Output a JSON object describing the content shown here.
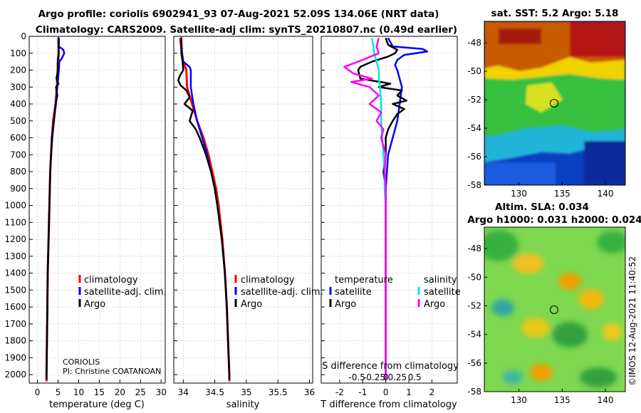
{
  "header": {
    "title_line1": "Argo profile: coriolis 6902941_93 07-Aug-2021 52.09S 134.06E (NRT data)",
    "title_line2": "Climatology: CARS2009. Satellite-adj clim: synTS_20210807.nc (0.49d earlier)"
  },
  "colors": {
    "climatology": "#ff0000",
    "satellite": "#0000ff",
    "argo": "#000000",
    "t_sat": "#0000ff",
    "s_sat": "#00e5e5",
    "s_argo": "#ff00ff",
    "grid": "#c8c8c8"
  },
  "chart_data": [
    {
      "id": "temperature",
      "type": "line",
      "xlabel": "temperature (deg C)",
      "ylabel": "",
      "xlim": [
        -2,
        31
      ],
      "ylim": [
        2050,
        0
      ],
      "xticks": [
        0,
        5,
        10,
        15,
        20,
        25,
        30
      ],
      "xticklabels": [
        "0",
        "5",
        "10",
        "15",
        "20",
        "25",
        "30"
      ],
      "yticks": [
        0,
        100,
        200,
        300,
        400,
        500,
        600,
        700,
        800,
        900,
        1000,
        1100,
        1200,
        1300,
        1400,
        1500,
        1600,
        1700,
        1800,
        1900,
        2000
      ],
      "yticklabels": [
        "0",
        "100",
        "200",
        "300",
        "400",
        "500",
        "600",
        "700",
        "800",
        "900",
        "1000",
        "1100",
        "1200",
        "1300",
        "1400",
        "1500",
        "1600",
        "1700",
        "1800",
        "1900",
        "2000"
      ],
      "legend": [
        "climatology",
        "satellite-adj. clim.",
        "Argo"
      ],
      "annotation": [
        "CORIOLIS",
        "PI: Christine COATANOAN"
      ],
      "series": [
        {
          "name": "climatology",
          "depth": [
            10,
            50,
            100,
            150,
            200,
            300,
            400,
            450,
            500,
            600,
            700,
            800,
            900,
            1000,
            1200,
            1400,
            1600,
            1800,
            2000,
            2040
          ],
          "values": [
            5.1,
            5.1,
            5.2,
            5.0,
            4.9,
            4.7,
            4.4,
            4.1,
            3.8,
            3.5,
            3.3,
            3.1,
            3.0,
            2.9,
            2.7,
            2.5,
            2.4,
            2.3,
            2.2,
            2.2
          ]
        },
        {
          "name": "satellite-adj. clim.",
          "depth": [
            10,
            60,
            80,
            100,
            130,
            150,
            200,
            300,
            400,
            500,
            600,
            700,
            800,
            900,
            1000,
            1200,
            1400,
            1600,
            1800,
            2000,
            2030
          ],
          "values": [
            5.2,
            5.2,
            6.3,
            6.5,
            5.9,
            5.3,
            5.2,
            4.8,
            4.5,
            4.0,
            3.5,
            3.3,
            3.1,
            3.0,
            2.9,
            2.7,
            2.5,
            2.4,
            2.3,
            2.2,
            2.2
          ]
        },
        {
          "name": "Argo",
          "depth": [
            5,
            100,
            150,
            200,
            250,
            280,
            300,
            350,
            400,
            500,
            600,
            700,
            800,
            1000,
            1200,
            1400,
            1600,
            1800,
            2000,
            2030
          ],
          "values": [
            5.1,
            5.1,
            4.9,
            5.0,
            4.6,
            5.1,
            4.5,
            4.8,
            4.4,
            4.0,
            3.6,
            3.3,
            3.1,
            2.9,
            2.7,
            2.5,
            2.4,
            2.3,
            2.2,
            2.2
          ]
        }
      ]
    },
    {
      "id": "salinity",
      "type": "line",
      "xlabel": "salinity",
      "xlim": [
        33.85,
        36.05
      ],
      "ylim": [
        2050,
        0
      ],
      "xticks": [
        34,
        34.5,
        35,
        35.5,
        36
      ],
      "xticklabels": [
        "34",
        "34.5",
        "35",
        "35.5",
        "36"
      ],
      "legend": [
        "climatology",
        "satellite-adj. clim.",
        "Argo"
      ],
      "series": [
        {
          "name": "climatology",
          "depth": [
            10,
            100,
            150,
            200,
            300,
            400,
            500,
            600,
            700,
            800,
            900,
            1000,
            1200,
            1400,
            1600,
            1800,
            2000,
            2040
          ],
          "values": [
            33.95,
            33.98,
            34.0,
            34.05,
            34.06,
            34.14,
            34.22,
            34.32,
            34.4,
            34.46,
            34.52,
            34.56,
            34.62,
            34.66,
            34.69,
            34.71,
            34.73,
            34.73
          ]
        },
        {
          "name": "satellite-adj. clim.",
          "depth": [
            10,
            100,
            150,
            180,
            200,
            300,
            400,
            500,
            600,
            700,
            800,
            900,
            1000,
            1200,
            1400,
            1600,
            1800,
            2000,
            2030
          ],
          "values": [
            33.97,
            33.98,
            34.0,
            34.1,
            34.12,
            34.12,
            34.16,
            34.22,
            34.3,
            34.38,
            34.44,
            34.5,
            34.54,
            34.61,
            34.66,
            34.69,
            34.71,
            34.73,
            34.73
          ]
        },
        {
          "name": "Argo",
          "depth": [
            5,
            100,
            150,
            200,
            230,
            260,
            290,
            320,
            360,
            400,
            440,
            500,
            550,
            600,
            700,
            800,
            900,
            1000,
            1200,
            1400,
            1600,
            1800,
            2000,
            2030
          ],
          "values": [
            33.97,
            33.97,
            33.99,
            34.0,
            33.95,
            33.92,
            33.96,
            34.05,
            34.1,
            34.02,
            34.15,
            34.1,
            34.2,
            34.26,
            34.36,
            34.44,
            34.5,
            34.54,
            34.61,
            34.66,
            34.69,
            34.71,
            34.73,
            34.73
          ]
        }
      ]
    },
    {
      "id": "difference",
      "type": "line",
      "xlabel": "T difference from climatology",
      "xlabel_top": "S difference from climatology",
      "xlim": [
        -2.8,
        3.1
      ],
      "ylim": [
        2050,
        0
      ],
      "xticks": [
        -2,
        -1,
        0,
        1,
        2
      ],
      "xticklabels": [
        "-2",
        "-1",
        "0",
        "1",
        "2"
      ],
      "sticks": [
        -1.25,
        -0.5,
        0,
        0.5,
        1.25
      ],
      "sticklabels": [
        "-0.5",
        "-0.25",
        "0",
        "0.25",
        "0.5"
      ],
      "legend_headers": [
        "temperature",
        "salinity"
      ],
      "legend": [
        "satellite",
        "Argo",
        "satellite",
        "Argo"
      ],
      "series": [
        {
          "name": "T satellite",
          "depth": [
            10,
            60,
            75,
            90,
            110,
            140,
            170,
            200,
            300,
            400,
            500,
            600,
            700,
            800,
            900,
            1000,
            1200,
            1400,
            1600,
            1800,
            2000,
            2030
          ],
          "values": [
            0.1,
            0.3,
            1.6,
            1.8,
            0.8,
            0.5,
            0.4,
            0.5,
            0.7,
            0.6,
            0.5,
            0.3,
            0.1,
            0.05,
            0.0,
            0.0,
            0.0,
            0.0,
            0.0,
            0.0,
            0.0,
            0.0
          ]
        },
        {
          "name": "T Argo",
          "depth": [
            10,
            50,
            80,
            100,
            120,
            150,
            180,
            200,
            250,
            280,
            300,
            320,
            350,
            380,
            400,
            430,
            460,
            500,
            550,
            600,
            700,
            800,
            900,
            1000,
            1200,
            1400,
            1600,
            1800,
            2000,
            2030
          ],
          "values": [
            0.0,
            0.1,
            0.5,
            0.4,
            0.1,
            -0.6,
            -1.1,
            -1.2,
            -1.1,
            0.2,
            -0.3,
            0.7,
            0.5,
            0.9,
            0.3,
            0.8,
            0.5,
            0.3,
            0.1,
            0.0,
            0.0,
            -0.1,
            0.0,
            0.0,
            0.0,
            0.0,
            0.0,
            0.0,
            0.0,
            0.0
          ]
        },
        {
          "name": "S satellite",
          "depth": [
            10,
            100,
            150,
            200,
            250,
            300,
            400,
            500,
            600,
            700,
            800,
            900,
            1000,
            1200,
            1400,
            1600,
            1800,
            2000,
            2030
          ],
          "values": [
            -0.6,
            -0.5,
            -0.4,
            -0.3,
            -0.3,
            -0.25,
            -0.2,
            -0.2,
            -0.15,
            -0.1,
            -0.05,
            -0.05,
            0.0,
            0.0,
            0.0,
            0.0,
            0.0,
            0.0,
            0.0
          ]
        },
        {
          "name": "S Argo",
          "depth": [
            10,
            60,
            100,
            150,
            180,
            200,
            220,
            250,
            270,
            300,
            350,
            400,
            450,
            500,
            550,
            600,
            700,
            800,
            900,
            1000,
            1200,
            1400,
            1600,
            1800,
            2000,
            2030
          ],
          "values": [
            -0.3,
            -0.4,
            -0.3,
            -1.2,
            -1.8,
            -1.6,
            -1.4,
            -0.6,
            -1.5,
            -0.7,
            -0.3,
            -0.7,
            -0.2,
            -0.4,
            -0.1,
            -0.2,
            0.0,
            -0.05,
            0.0,
            0.0,
            0.0,
            0.0,
            0.0,
            0.0,
            0.0,
            0.0
          ]
        }
      ]
    },
    {
      "id": "sst_map",
      "type": "heatmap",
      "title": "sat. SST: 5.2 Argo: 5.18",
      "xlim": [
        126,
        142.3
      ],
      "ylim": [
        -58,
        -46.5
      ],
      "xticks": [
        130,
        135,
        140
      ],
      "xticklabels": [
        "130",
        "135",
        "140"
      ],
      "yticks": [
        -48,
        -50,
        -52,
        -54,
        -56,
        -58
      ],
      "yticklabels": [
        "-48",
        "-50",
        "-52",
        "-54",
        "-56",
        "-58"
      ],
      "marker": {
        "lon": 134.06,
        "lat": -52.09
      }
    },
    {
      "id": "sla_map",
      "type": "heatmap",
      "title": "Altim. SLA: 0.034",
      "subtitle": "Argo h1000: 0.031 h2000: 0.024",
      "xlim": [
        126,
        142.3
      ],
      "ylim": [
        -58,
        -46.5
      ],
      "xticks": [
        130,
        135,
        140
      ],
      "xticklabels": [
        "130",
        "135",
        "140"
      ],
      "yticks": [
        -48,
        -50,
        -52,
        -54,
        -56,
        -58
      ],
      "yticklabels": [
        "-48",
        "-50",
        "-52",
        "-54",
        "-56",
        "-58"
      ],
      "marker": {
        "lon": 134.06,
        "lat": -52.09
      }
    }
  ],
  "watermark": "©IMOS 12-Aug-2021 11:40:52"
}
